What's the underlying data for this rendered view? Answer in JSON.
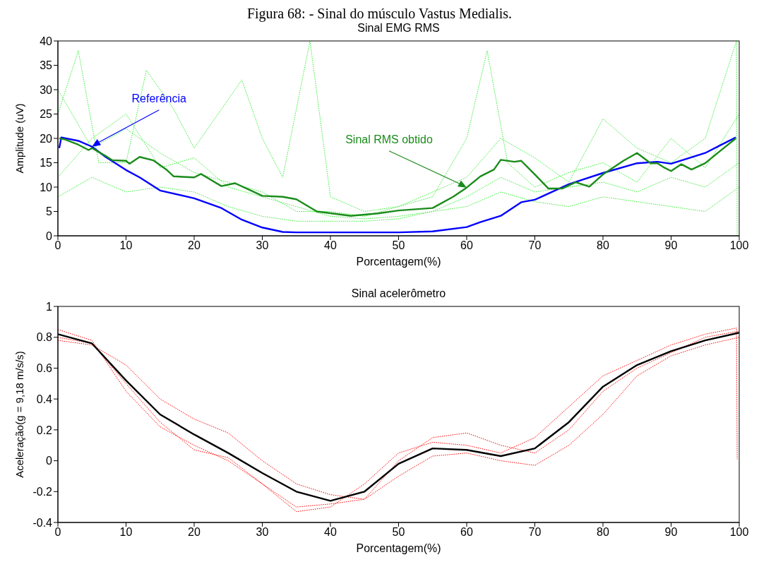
{
  "chart_data": [
    {
      "type": "line",
      "title": "Sinal EMG RMS",
      "xlabel": "Porcentagem(%)",
      "ylabel": "Amplitude (uV)",
      "xlim": [
        0,
        100
      ],
      "ylim": [
        0,
        40
      ],
      "xticks": [
        0,
        10,
        20,
        30,
        40,
        50,
        60,
        70,
        80,
        90,
        100
      ],
      "yticks": [
        0,
        5,
        10,
        15,
        20,
        25,
        30,
        35,
        40
      ],
      "legend": false,
      "grid": false,
      "marker": "none",
      "annotations": [
        "Figura 68: - Sinal do músculo Vastus Medialis."
      ],
      "series": [
        {
          "color": "#33ee33",
          "line_style": "dotted",
          "x": [
            0,
            5,
            10,
            15,
            20,
            25,
            30,
            35,
            40,
            45,
            50,
            55,
            60,
            65,
            70,
            75,
            80,
            85,
            90,
            95,
            100
          ],
          "values": [
            12,
            20,
            25,
            14,
            16,
            10,
            8,
            6,
            4,
            3.5,
            4,
            5,
            8,
            12,
            9,
            10,
            11,
            9,
            12,
            10,
            15
          ]
        },
        {
          "color": "#33ee33",
          "line_style": "dotted",
          "x": [
            0,
            5,
            10,
            15,
            20,
            25,
            30,
            35,
            40,
            45,
            50,
            55,
            60,
            63,
            66,
            70,
            75,
            80,
            85,
            90,
            95,
            100
          ],
          "values": [
            30,
            18,
            22,
            17,
            13,
            11,
            9,
            5,
            5,
            4,
            6,
            8,
            20,
            38,
            15,
            10,
            13,
            15,
            11,
            20,
            14,
            25
          ]
        },
        {
          "color": "#33ee33",
          "line_style": "dotted",
          "x": [
            0,
            5,
            10,
            15,
            20,
            25,
            30,
            35,
            40,
            45,
            50,
            55,
            60,
            65,
            70,
            75,
            80,
            85,
            90,
            95,
            100
          ],
          "values": [
            8,
            12,
            9,
            10,
            9,
            6,
            4,
            3,
            3,
            3,
            3.5,
            5,
            6,
            9,
            7,
            6,
            8,
            7,
            6,
            5,
            10
          ]
        },
        {
          "color": "#33ee33",
          "line_style": "dotted",
          "x": [
            0,
            3,
            6,
            10,
            13,
            17,
            20,
            27,
            30,
            33,
            37,
            40,
            45,
            50,
            55,
            60,
            65,
            70,
            75,
            80,
            85,
            90,
            95,
            99.6,
            99.7
          ],
          "values": [
            25,
            38,
            15,
            15,
            34,
            26,
            18,
            32,
            20,
            12,
            40,
            8,
            5,
            6,
            9,
            12,
            20,
            16,
            11,
            24,
            18,
            15,
            20,
            40,
            0
          ]
        },
        {
          "name": "Referência",
          "color": "#0000ff",
          "line_style": "solid",
          "x": [
            0.2,
            0.5,
            3,
            5,
            7,
            10,
            12,
            15,
            20,
            24,
            27,
            30,
            33,
            35,
            45,
            50,
            55,
            60,
            62,
            65,
            68,
            70,
            75,
            80,
            85,
            88,
            90,
            95,
            99.5
          ],
          "values": [
            18,
            20.2,
            19.5,
            18.3,
            16.2,
            13.5,
            12,
            9.3,
            7.7,
            5.7,
            3.3,
            1.7,
            0.8,
            0.7,
            0.7,
            0.7,
            0.9,
            1.8,
            2.8,
            4.1,
            6.9,
            7.4,
            10.6,
            12.9,
            14.9,
            15.2,
            14.8,
            17,
            20.2
          ]
        },
        {
          "name": "Sinal RMS obtido",
          "color": "#1a8c1a",
          "line_style": "solid",
          "x": [
            0.2,
            1,
            3,
            4.5,
            5,
            7,
            8,
            10,
            10.5,
            12,
            14,
            16,
            17,
            20,
            21,
            24,
            26,
            28,
            30,
            33,
            35,
            38,
            43,
            47,
            50,
            55,
            58,
            60,
            62,
            64,
            65,
            67,
            68,
            70,
            72,
            74,
            76,
            78,
            80,
            83,
            85,
            87,
            88,
            89,
            90,
            91.5,
            93,
            95,
            97,
            99.5
          ],
          "values": [
            20,
            19.8,
            18.7,
            17.6,
            18,
            16.4,
            15.5,
            15.4,
            14.8,
            16.2,
            15.5,
            13.5,
            12.2,
            12,
            12.7,
            10.2,
            10.8,
            9.5,
            8.2,
            8,
            7.5,
            5,
            4.1,
            4.6,
            5.2,
            5.7,
            8,
            9.9,
            12.2,
            13.6,
            15.6,
            15.2,
            15.4,
            12.6,
            9.7,
            9.7,
            11,
            10.1,
            12.6,
            15.4,
            17,
            14.9,
            14.9,
            14,
            13.3,
            14.7,
            13.6,
            14.9,
            17.2,
            20
          ]
        }
      ]
    },
    {
      "type": "line",
      "title": "Sinal acelerômetro",
      "xlabel": "Porcentagem(%)",
      "ylabel": "Aceleração(g = 9,18 m/s/s)",
      "xlim": [
        0,
        100
      ],
      "ylim": [
        -0.4,
        1
      ],
      "xticks": [
        0,
        10,
        20,
        30,
        40,
        50,
        60,
        70,
        80,
        90,
        100
      ],
      "yticks": [
        -0.4,
        -0.2,
        0,
        0.2,
        0.4,
        0.6,
        0.8,
        1
      ],
      "legend": false,
      "grid": false,
      "marker": "none",
      "series": [
        {
          "color": "#ff0000",
          "line_style": "dotted",
          "x": [
            0,
            5,
            10,
            15,
            20,
            25,
            30,
            35,
            40,
            45,
            50,
            55,
            60,
            65,
            70,
            75,
            80,
            85,
            90,
            95,
            99.6,
            99.7
          ],
          "values": [
            0.85,
            0.78,
            0.45,
            0.22,
            0.1,
            0,
            -0.15,
            -0.33,
            -0.3,
            -0.15,
            0.05,
            0.12,
            0.1,
            0.05,
            0.15,
            0.35,
            0.55,
            0.65,
            0.75,
            0.82,
            0.86,
            0.01
          ]
        },
        {
          "color": "#ff0000",
          "line_style": "dotted",
          "x": [
            0,
            5,
            10,
            15,
            20,
            25,
            30,
            35,
            40,
            45,
            50,
            55,
            60,
            65,
            70,
            75,
            80,
            85,
            90,
            95,
            100
          ],
          "values": [
            0.78,
            0.75,
            0.62,
            0.4,
            0.27,
            0.18,
            0,
            -0.15,
            -0.22,
            -0.25,
            -0.1,
            0.03,
            0.05,
            0,
            -0.03,
            0.1,
            0.3,
            0.55,
            0.68,
            0.75,
            0.8
          ]
        },
        {
          "color": "#ff0000",
          "line_style": "dotted",
          "x": [
            0,
            5,
            10,
            15,
            20,
            25,
            30,
            35,
            40,
            45,
            50,
            55,
            60,
            65,
            70,
            75,
            80,
            85,
            90,
            95,
            100
          ],
          "values": [
            0.8,
            0.76,
            0.5,
            0.25,
            0.07,
            0.02,
            -0.15,
            -0.3,
            -0.28,
            -0.25,
            0,
            0.15,
            0.18,
            0.1,
            0.05,
            0.2,
            0.45,
            0.6,
            0.7,
            0.8,
            0.84
          ]
        },
        {
          "color": "#000000",
          "line_style": "solid",
          "x": [
            0,
            5,
            10,
            15,
            20,
            25,
            30,
            35,
            40,
            45,
            50,
            55,
            60,
            65,
            70,
            75,
            80,
            85,
            90,
            95,
            100
          ],
          "values": [
            0.82,
            0.76,
            0.52,
            0.3,
            0.17,
            0.05,
            -0.08,
            -0.2,
            -0.26,
            -0.2,
            -0.02,
            0.08,
            0.07,
            0.03,
            0.08,
            0.25,
            0.48,
            0.62,
            0.71,
            0.78,
            0.83
          ]
        }
      ]
    }
  ]
}
